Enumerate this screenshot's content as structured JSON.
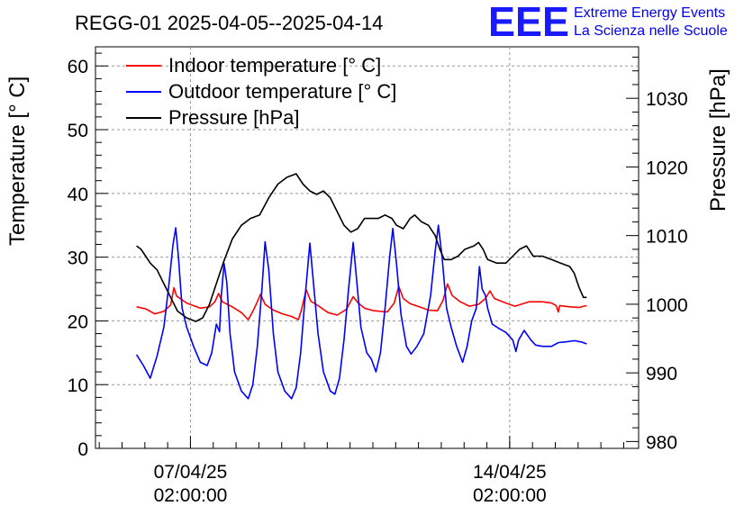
{
  "chart_data": {
    "type": "line",
    "title": "REGG-01 2025-04-05--2025-04-14",
    "logo": {
      "text": "EEE",
      "line1": "Extreme Energy Events",
      "line2": "La Scienza nelle Scuole"
    },
    "y_left": {
      "label": "Temperature [° C]",
      "range": [
        0,
        63
      ],
      "ticks": [
        0,
        10,
        20,
        30,
        40,
        50,
        60
      ]
    },
    "y_right": {
      "label": "Pressure [hPa]",
      "range": [
        979,
        1037.5
      ],
      "ticks": [
        980,
        990,
        1000,
        1010,
        1020,
        1030
      ]
    },
    "x": {
      "unit": "days since 2025-04-05 00:00",
      "range": [
        0,
        11.91
      ],
      "ticks": [
        {
          "value": 2.083,
          "date": "07/04/25",
          "time": "02:00:00"
        },
        {
          "value": 9.083,
          "date": "14/04/25",
          "time": "02:00:00"
        }
      ]
    },
    "legend": [
      {
        "label": "Indoor temperature [° C]",
        "color": "#ff0000"
      },
      {
        "label": "Outdoor temperature [° C]",
        "color": "#0000ff"
      },
      {
        "label": "Pressure [hPa]",
        "color": "#000000"
      }
    ],
    "series": [
      {
        "name": "Indoor temperature [° C]",
        "axis": "left",
        "color": "#ff0000",
        "points": [
          [
            0.9,
            22.2
          ],
          [
            1.1,
            21.9
          ],
          [
            1.3,
            21.1
          ],
          [
            1.5,
            21.5
          ],
          [
            1.65,
            22.5
          ],
          [
            1.72,
            25.2
          ],
          [
            1.78,
            23.9
          ],
          [
            2.0,
            22.8
          ],
          [
            2.3,
            22.0
          ],
          [
            2.5,
            22.2
          ],
          [
            2.62,
            23.0
          ],
          [
            2.7,
            24.3
          ],
          [
            2.78,
            23.0
          ],
          [
            3.0,
            22.2
          ],
          [
            3.2,
            21.3
          ],
          [
            3.35,
            20.2
          ],
          [
            3.45,
            21.5
          ],
          [
            3.55,
            23.0
          ],
          [
            3.62,
            24.2
          ],
          [
            3.72,
            22.6
          ],
          [
            3.9,
            21.7
          ],
          [
            4.1,
            21.1
          ],
          [
            4.3,
            20.7
          ],
          [
            4.45,
            20.2
          ],
          [
            4.52,
            21.8
          ],
          [
            4.62,
            24.9
          ],
          [
            4.72,
            23.1
          ],
          [
            4.9,
            22.3
          ],
          [
            5.1,
            21.3
          ],
          [
            5.3,
            20.9
          ],
          [
            5.5,
            21.8
          ],
          [
            5.65,
            23.8
          ],
          [
            5.75,
            22.9
          ],
          [
            5.9,
            22.0
          ],
          [
            6.1,
            21.6
          ],
          [
            6.4,
            21.4
          ],
          [
            6.55,
            22.8
          ],
          [
            6.65,
            25.4
          ],
          [
            6.75,
            23.5
          ],
          [
            6.9,
            22.7
          ],
          [
            7.1,
            22.2
          ],
          [
            7.3,
            21.7
          ],
          [
            7.5,
            21.6
          ],
          [
            7.62,
            23.2
          ],
          [
            7.72,
            25.8
          ],
          [
            7.82,
            24.0
          ],
          [
            8.0,
            23.0
          ],
          [
            8.2,
            22.3
          ],
          [
            8.4,
            22.6
          ],
          [
            8.55,
            23.5
          ],
          [
            8.65,
            24.7
          ],
          [
            8.75,
            23.5
          ],
          [
            9.0,
            22.8
          ],
          [
            9.2,
            22.3
          ],
          [
            9.5,
            23.0
          ],
          [
            9.8,
            23.0
          ],
          [
            10.0,
            22.8
          ],
          [
            10.1,
            22.4
          ],
          [
            10.15,
            21.4
          ],
          [
            10.18,
            22.4
          ],
          [
            10.4,
            22.2
          ],
          [
            10.6,
            22.1
          ],
          [
            10.77,
            22.4
          ]
        ]
      },
      {
        "name": "Outdoor temperature [° C]",
        "axis": "left",
        "color": "#0000ff",
        "points": [
          [
            0.9,
            14.7
          ],
          [
            1.05,
            13.0
          ],
          [
            1.2,
            11.0
          ],
          [
            1.35,
            14.5
          ],
          [
            1.5,
            19.0
          ],
          [
            1.6,
            25.0
          ],
          [
            1.7,
            32.0
          ],
          [
            1.76,
            34.6
          ],
          [
            1.82,
            30.0
          ],
          [
            1.9,
            22.0
          ],
          [
            2.0,
            19.0
          ],
          [
            2.15,
            16.0
          ],
          [
            2.3,
            13.5
          ],
          [
            2.45,
            13.0
          ],
          [
            2.55,
            15.0
          ],
          [
            2.65,
            19.5
          ],
          [
            2.72,
            18.3
          ],
          [
            2.76,
            24.0
          ],
          [
            2.82,
            29.0
          ],
          [
            2.88,
            26.0
          ],
          [
            2.95,
            18.0
          ],
          [
            3.05,
            12.0
          ],
          [
            3.2,
            9.0
          ],
          [
            3.35,
            7.8
          ],
          [
            3.45,
            10.0
          ],
          [
            3.55,
            16.0
          ],
          [
            3.65,
            25.0
          ],
          [
            3.72,
            32.4
          ],
          [
            3.8,
            28.0
          ],
          [
            3.9,
            18.0
          ],
          [
            4.0,
            12.0
          ],
          [
            4.15,
            9.0
          ],
          [
            4.3,
            7.8
          ],
          [
            4.4,
            9.5
          ],
          [
            4.5,
            15.0
          ],
          [
            4.6,
            24.0
          ],
          [
            4.7,
            32.2
          ],
          [
            4.78,
            26.0
          ],
          [
            4.88,
            18.0
          ],
          [
            5.0,
            12.0
          ],
          [
            5.15,
            9.0
          ],
          [
            5.25,
            8.5
          ],
          [
            5.35,
            11.0
          ],
          [
            5.45,
            17.0
          ],
          [
            5.55,
            25.0
          ],
          [
            5.65,
            32.3
          ],
          [
            5.72,
            27.0
          ],
          [
            5.82,
            19.0
          ],
          [
            5.95,
            15.0
          ],
          [
            6.05,
            14.0
          ],
          [
            6.15,
            12.0
          ],
          [
            6.25,
            15.0
          ],
          [
            6.35,
            22.0
          ],
          [
            6.45,
            30.0
          ],
          [
            6.52,
            34.5
          ],
          [
            6.6,
            29.0
          ],
          [
            6.7,
            21.0
          ],
          [
            6.82,
            16.0
          ],
          [
            6.92,
            14.8
          ],
          [
            7.05,
            16.0
          ],
          [
            7.2,
            18.0
          ],
          [
            7.35,
            24.0
          ],
          [
            7.45,
            31.0
          ],
          [
            7.52,
            35.0
          ],
          [
            7.6,
            30.0
          ],
          [
            7.7,
            22.0
          ],
          [
            7.8,
            19.0
          ],
          [
            7.92,
            16.0
          ],
          [
            8.05,
            13.5
          ],
          [
            8.15,
            16.0
          ],
          [
            8.25,
            20.0
          ],
          [
            8.35,
            22.0
          ],
          [
            8.42,
            28.5
          ],
          [
            8.48,
            25.0
          ],
          [
            8.55,
            24.0
          ],
          [
            8.6,
            22.0
          ],
          [
            8.7,
            19.5
          ],
          [
            8.85,
            18.8
          ],
          [
            9.0,
            18.2
          ],
          [
            9.15,
            17.0
          ],
          [
            9.22,
            15.2
          ],
          [
            9.28,
            17.0
          ],
          [
            9.4,
            18.5
          ],
          [
            9.55,
            17.0
          ],
          [
            9.65,
            16.2
          ],
          [
            9.8,
            16.0
          ],
          [
            10.0,
            16.0
          ],
          [
            10.15,
            16.6
          ],
          [
            10.3,
            16.7
          ],
          [
            10.5,
            16.9
          ],
          [
            10.65,
            16.7
          ],
          [
            10.77,
            16.4
          ]
        ]
      },
      {
        "name": "Pressure [hPa]",
        "axis": "right",
        "color": "#000000",
        "points": [
          [
            0.9,
            1008.5
          ],
          [
            1.0,
            1008.0
          ],
          [
            1.1,
            1007.0
          ],
          [
            1.2,
            1006.0
          ],
          [
            1.35,
            1005.0
          ],
          [
            1.5,
            1003.0
          ],
          [
            1.65,
            1001.0
          ],
          [
            1.8,
            999.0
          ],
          [
            2.0,
            998.0
          ],
          [
            2.2,
            997.5
          ],
          [
            2.35,
            998.0
          ],
          [
            2.5,
            1000.0
          ],
          [
            2.65,
            1003.0
          ],
          [
            2.8,
            1006.0
          ],
          [
            3.0,
            1009.5
          ],
          [
            3.2,
            1011.5
          ],
          [
            3.4,
            1012.5
          ],
          [
            3.6,
            1013.0
          ],
          [
            3.8,
            1015.5
          ],
          [
            4.0,
            1017.5
          ],
          [
            4.2,
            1018.5
          ],
          [
            4.4,
            1019.0
          ],
          [
            4.55,
            1017.5
          ],
          [
            4.7,
            1016.5
          ],
          [
            4.85,
            1016.0
          ],
          [
            5.0,
            1016.5
          ],
          [
            5.15,
            1015.5
          ],
          [
            5.3,
            1013.5
          ],
          [
            5.45,
            1011.5
          ],
          [
            5.6,
            1010.5
          ],
          [
            5.75,
            1011.0
          ],
          [
            5.9,
            1012.5
          ],
          [
            6.05,
            1012.5
          ],
          [
            6.2,
            1012.5
          ],
          [
            6.35,
            1013.0
          ],
          [
            6.5,
            1012.5
          ],
          [
            6.6,
            1011.5
          ],
          [
            6.75,
            1011.0
          ],
          [
            6.9,
            1012.5
          ],
          [
            7.0,
            1013.0
          ],
          [
            7.15,
            1012.0
          ],
          [
            7.3,
            1011.5
          ],
          [
            7.45,
            1010.0
          ],
          [
            7.55,
            1008.0
          ],
          [
            7.65,
            1006.5
          ],
          [
            7.8,
            1006.5
          ],
          [
            7.95,
            1007.0
          ],
          [
            8.1,
            1008.0
          ],
          [
            8.3,
            1008.5
          ],
          [
            8.4,
            1009.0
          ],
          [
            8.5,
            1008.0
          ],
          [
            8.6,
            1006.5
          ],
          [
            8.8,
            1006.0
          ],
          [
            9.0,
            1006.0
          ],
          [
            9.15,
            1007.0
          ],
          [
            9.3,
            1008.0
          ],
          [
            9.45,
            1008.5
          ],
          [
            9.6,
            1007.0
          ],
          [
            9.8,
            1007.0
          ],
          [
            10.0,
            1006.5
          ],
          [
            10.2,
            1006.0
          ],
          [
            10.4,
            1005.5
          ],
          [
            10.5,
            1004.5
          ],
          [
            10.6,
            1002.5
          ],
          [
            10.7,
            1001.0
          ],
          [
            10.77,
            1001.0
          ]
        ]
      }
    ]
  }
}
